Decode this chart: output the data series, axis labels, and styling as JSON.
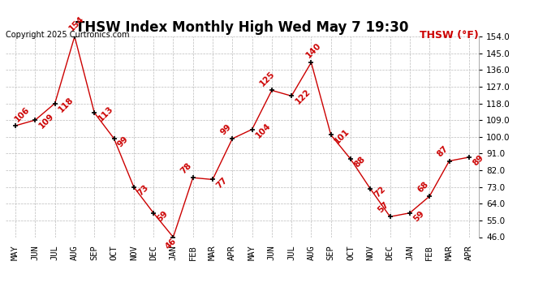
{
  "title": "THSW Index Monthly High Wed May 7 19:30",
  "copyright": "Copyright 2025 Curtronics.com",
  "legend_label": "THSW (°F)",
  "months": [
    "MAY",
    "JUN",
    "JUL",
    "AUG",
    "SEP",
    "OCT",
    "NOV",
    "DEC",
    "JAN",
    "FEB",
    "MAR",
    "APR",
    "MAY",
    "JUN",
    "JUL",
    "AUG",
    "SEP",
    "OCT",
    "NOV",
    "DEC",
    "JAN",
    "FEB",
    "MAR",
    "APR"
  ],
  "values": [
    106,
    109,
    118,
    154,
    113,
    99,
    73,
    59,
    46,
    78,
    77,
    99,
    104,
    125,
    122,
    140,
    101,
    88,
    72,
    57,
    59,
    68,
    87,
    89
  ],
  "line_color": "#cc0000",
  "marker": "+",
  "ylim": [
    46.0,
    154.0
  ],
  "yticks": [
    46.0,
    55.0,
    64.0,
    73.0,
    82.0,
    91.0,
    100.0,
    109.0,
    118.0,
    127.0,
    136.0,
    145.0,
    154.0
  ],
  "grid_color": "#bbbbbb",
  "background_color": "#ffffff",
  "label_color": "#cc0000",
  "title_fontsize": 12,
  "copyright_fontsize": 7,
  "legend_fontsize": 9,
  "tick_label_fontsize": 7.5,
  "value_label_fontsize": 7.5
}
